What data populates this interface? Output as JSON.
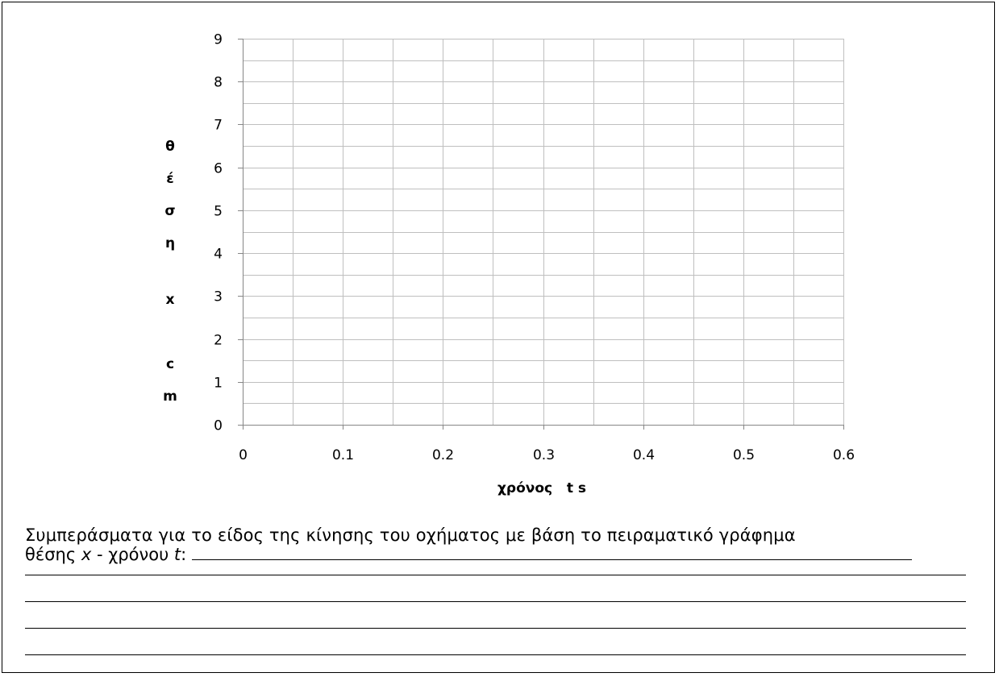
{
  "chart_data": {
    "type": "scatter",
    "x": [],
    "y": [],
    "xlim": [
      0,
      0.6
    ],
    "ylim": [
      0,
      9
    ],
    "xticks": [
      "0",
      "0.1",
      "0.2",
      "0.3",
      "0.4",
      "0.5",
      "0.6"
    ],
    "yticks": [
      "0",
      "1",
      "2",
      "3",
      "4",
      "5",
      "6",
      "7",
      "8",
      "9"
    ],
    "xlabel": "χρόνος   t s",
    "ylabel_chars": [
      "θ",
      "έ",
      "σ",
      "η",
      "x",
      "c",
      "m"
    ],
    "grid": true,
    "grid_color": "#bfbfbf",
    "axis_color": "#868686"
  },
  "text": {
    "conclusion_line1": "Συμπεράσματα για το είδος της κίνησης του οχήματος με βάση το πειραματικό γράφημα",
    "conclusion_line2_a": "θέσης ",
    "conclusion_line2_x": "x",
    "conclusion_line2_b": " - χρόνου ",
    "conclusion_line2_t": "t",
    "conclusion_line2_c": ": "
  }
}
